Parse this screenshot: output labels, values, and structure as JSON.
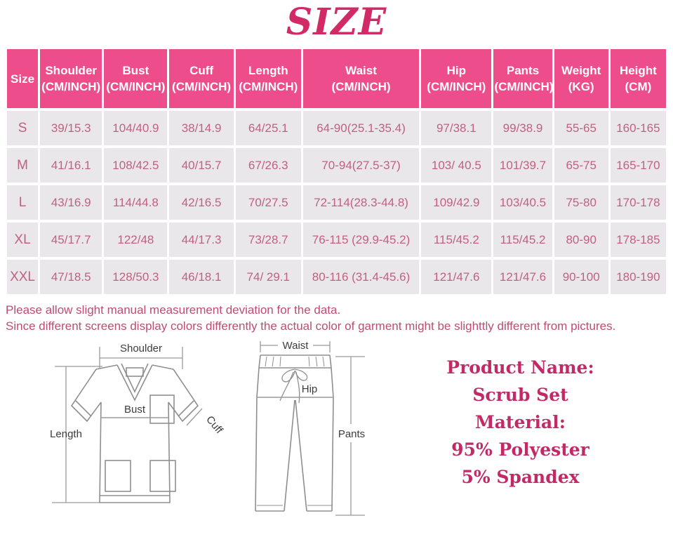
{
  "page": {
    "title": "SIZE"
  },
  "colors": {
    "header_bg": "#ee4d8c",
    "row_bg": "#e9e7ea",
    "cell_text": "#c2607f",
    "title_text": "#d12a66",
    "notes_text": "#c04b73",
    "product_text": "#c22a67"
  },
  "table": {
    "columns": [
      {
        "line1": "Size",
        "line2": ""
      },
      {
        "line1": "Shoulder",
        "line2": "(CM/INCH)"
      },
      {
        "line1": "Bust",
        "line2": "(CM/INCH)"
      },
      {
        "line1": "Cuff",
        "line2": "(CM/INCH)"
      },
      {
        "line1": "Length",
        "line2": "(CM/INCH)"
      },
      {
        "line1": "Waist",
        "line2": "(CM/INCH)"
      },
      {
        "line1": "Hip",
        "line2": "(CM/INCH)"
      },
      {
        "line1": "Pants",
        "line2": "(CM/INCH)"
      },
      {
        "line1": "Weight",
        "line2": "(KG)"
      },
      {
        "line1": "Height",
        "line2": "(CM)"
      }
    ],
    "rows": [
      [
        "S",
        "39/15.3",
        "104/40.9",
        "38/14.9",
        "64/25.1",
        "64-90(25.1-35.4)",
        "97/38.1",
        "99/38.9",
        "55-65",
        "160-165"
      ],
      [
        "M",
        "41/16.1",
        "108/42.5",
        "40/15.7",
        "67/26.3",
        "70-94(27.5-37)",
        "103/ 40.5",
        "101/39.7",
        "65-75",
        "165-170"
      ],
      [
        "L",
        "43/16.9",
        "114/44.8",
        "42/16.5",
        "70/27.5",
        "72-114(28.3-44.8)",
        "109/42.9",
        "103/40.5",
        "75-80",
        "170-178"
      ],
      [
        "XL",
        "45/17.7",
        "122/48",
        "44/17.3",
        "73/28.7",
        "76-115 (29.9-45.2)",
        "115/45.2",
        "115/45.2",
        "80-90",
        "178-185"
      ],
      [
        "XXL",
        "47/18.5",
        "128/50.3",
        "46/18.1",
        "74/ 29.1",
        "80-116 (31.4-45.6)",
        "121/47.6",
        "121/47.6",
        "90-100",
        "180-190"
      ]
    ]
  },
  "notes": {
    "line1": "Please allow slight manual measurement deviation for the data.",
    "line2": "Since different screens display colors differently the actual color of garment might be slighttly different from pictures."
  },
  "diagram": {
    "top": {
      "shoulder": "Shoulder",
      "bust": "Bust",
      "length": "Length",
      "cuff": "Cuff"
    },
    "pants": {
      "waist": "Waist",
      "hip": "Hip",
      "pants": "Pants"
    }
  },
  "product": {
    "line1": "Product Name:",
    "line2": "Scrub Set",
    "line3": "Material:",
    "line4": "95% Polyester",
    "line5": "5% Spandex"
  }
}
